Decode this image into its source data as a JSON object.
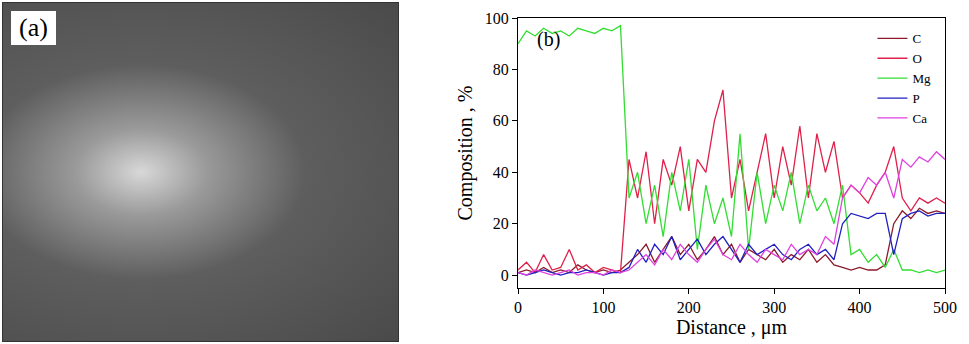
{
  "image_panel": {
    "label": "(a)"
  },
  "chart_data": {
    "type": "line",
    "annotations": [
      "(b)"
    ],
    "x_label": "Distance , μm",
    "y_label": "Composition , %",
    "x": [
      0,
      10,
      20,
      30,
      40,
      50,
      60,
      70,
      80,
      90,
      100,
      110,
      120,
      130,
      140,
      150,
      160,
      170,
      180,
      190,
      200,
      210,
      220,
      230,
      240,
      250,
      260,
      270,
      280,
      290,
      300,
      310,
      320,
      330,
      340,
      350,
      360,
      370,
      380,
      390,
      400,
      410,
      420,
      430,
      440,
      450,
      460,
      470,
      480,
      490,
      500
    ],
    "xlim": [
      0,
      500
    ],
    "xticks": [
      0,
      100,
      200,
      300,
      400,
      500
    ],
    "ylim": [
      -5,
      100
    ],
    "yticks": [
      0,
      20,
      40,
      60,
      80,
      100
    ],
    "grid": false,
    "legend": "upper right",
    "series": [
      {
        "name": "C",
        "color": "#8b1a2a",
        "values": [
          1,
          2,
          1,
          3,
          1,
          2,
          1,
          4,
          2,
          1,
          2,
          1,
          2,
          5,
          8,
          12,
          5,
          10,
          15,
          8,
          12,
          6,
          10,
          15,
          8,
          12,
          5,
          10,
          8,
          6,
          10,
          5,
          8,
          6,
          10,
          5,
          8,
          4,
          3,
          2,
          3,
          2,
          2,
          4,
          20,
          25,
          22,
          26,
          24,
          25,
          24
        ]
      },
      {
        "name": "O",
        "color": "#e0204a",
        "values": [
          2,
          5,
          1,
          8,
          2,
          3,
          10,
          2,
          4,
          1,
          3,
          2,
          1,
          45,
          30,
          48,
          20,
          45,
          35,
          50,
          25,
          45,
          40,
          60,
          72,
          30,
          45,
          25,
          40,
          55,
          30,
          50,
          35,
          58,
          30,
          55,
          40,
          52,
          30,
          35,
          32,
          28,
          35,
          40,
          50,
          30,
          25,
          30,
          28,
          30,
          28
        ]
      },
      {
        "name": "Mg",
        "color": "#33dd33",
        "values": [
          90,
          95,
          93,
          96,
          94,
          95,
          93,
          96,
          95,
          94,
          96,
          95,
          97,
          30,
          40,
          20,
          35,
          15,
          40,
          25,
          45,
          10,
          35,
          20,
          30,
          15,
          55,
          10,
          40,
          20,
          35,
          25,
          40,
          20,
          35,
          25,
          30,
          20,
          35,
          8,
          10,
          5,
          8,
          3,
          10,
          2,
          2,
          1,
          2,
          1,
          2
        ]
      },
      {
        "name": "P",
        "color": "#2020c0",
        "values": [
          1,
          0,
          1,
          2,
          1,
          0,
          1,
          1,
          2,
          1,
          0,
          1,
          1,
          3,
          10,
          5,
          12,
          8,
          15,
          6,
          10,
          14,
          8,
          12,
          15,
          10,
          5,
          12,
          8,
          10,
          12,
          8,
          6,
          10,
          12,
          8,
          10,
          6,
          20,
          24,
          23,
          22,
          24,
          24,
          8,
          22,
          24,
          25,
          23,
          24,
          24
        ]
      },
      {
        "name": "Ca",
        "color": "#e040e0",
        "values": [
          1,
          0,
          2,
          1,
          0,
          1,
          2,
          0,
          1,
          1,
          0,
          2,
          1,
          2,
          5,
          8,
          4,
          10,
          6,
          12,
          8,
          5,
          10,
          14,
          8,
          6,
          12,
          8,
          5,
          10,
          8,
          6,
          12,
          8,
          10,
          8,
          15,
          12,
          30,
          35,
          32,
          38,
          35,
          40,
          30,
          45,
          42,
          46,
          44,
          48,
          45
        ]
      }
    ]
  }
}
